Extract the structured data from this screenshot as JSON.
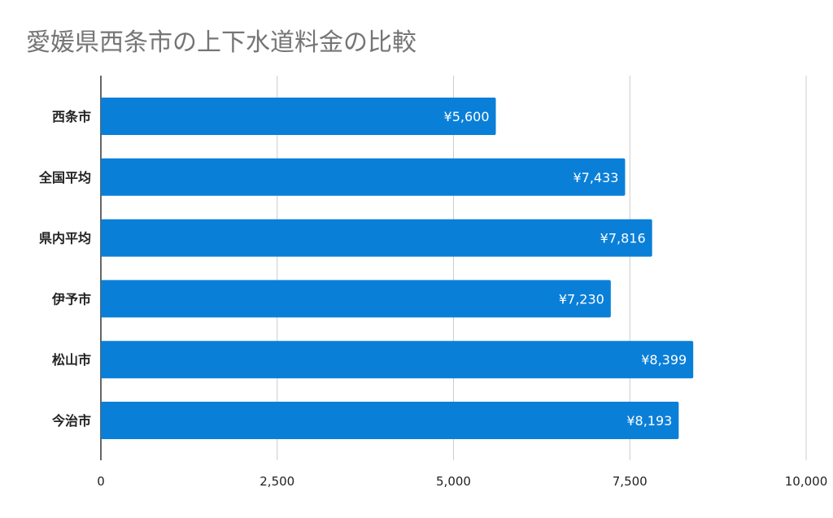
{
  "chart_data": {
    "type": "bar",
    "orientation": "horizontal",
    "title": "愛媛県西条市の上下水道料金の比較",
    "categories": [
      "西条市",
      "全国平均",
      "県内平均",
      "伊予市",
      "松山市",
      "今治市"
    ],
    "values": [
      5600,
      7433,
      7816,
      7230,
      8399,
      8193
    ],
    "data_labels": [
      "¥5,600",
      "¥7,433",
      "¥7,816",
      "¥7,230",
      "¥8,399",
      "¥8,193"
    ],
    "xlim": [
      0,
      10000
    ],
    "x_ticks": [
      0,
      2500,
      5000,
      7500,
      10000
    ],
    "x_tick_labels": [
      "0",
      "2,500",
      "5,000",
      "7,500",
      "10,000"
    ],
    "grid": true,
    "legend": "none",
    "colors": {
      "bar": "#0a7fd8",
      "title": "#757575",
      "grid": "#cccccc"
    }
  }
}
